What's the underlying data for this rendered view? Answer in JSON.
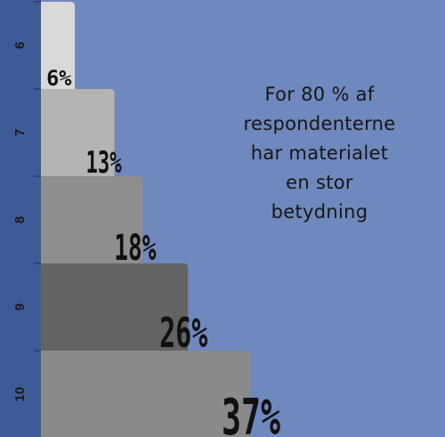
{
  "chart_data": {
    "type": "bar",
    "orientation": "horizontal",
    "categories": [
      "6",
      "7",
      "8",
      "9",
      "10"
    ],
    "values": [
      6,
      13,
      18,
      26,
      37
    ],
    "value_labels": [
      "6%",
      "13%",
      "18%",
      "26%",
      "37%"
    ],
    "xlim": [
      0,
      100
    ],
    "grid": false,
    "legend": "none",
    "colors": [
      "#d9d9d9",
      "#b4b4b4",
      "#8e8e8e",
      "#636363",
      "#8a8a8a"
    ]
  },
  "annotation": {
    "lines": [
      "For 80 % af",
      "respondenterne",
      "har materialet",
      "en stor",
      "betydning"
    ]
  },
  "theme": {
    "background": "#6f88bd",
    "axis_band": "#3e5a97"
  }
}
